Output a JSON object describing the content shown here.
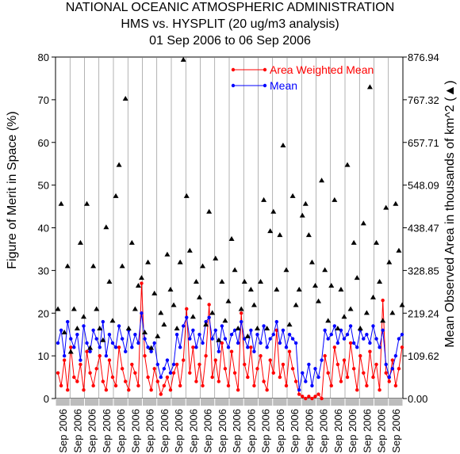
{
  "header": {
    "title_line1": "NATIONAL OCEANIC ATMOSPHERIC ADMINISTRATION",
    "title_line2": "HMS vs. HYSPLIT (20 ug/m3 analysis)",
    "title_line3": "01 Sep 2006 to 06 Sep 2006"
  },
  "colors": {
    "area_weighted_mean": "#ff0000",
    "mean": "#0000ff",
    "observed_area": "#000000",
    "date_band": "#bdbdbd"
  },
  "chart_data": {
    "type": "line",
    "ylabel_left": "Figure of Merit in Space (%)",
    "ylabel_right": "Mean Observed Area in thousands of km^2 (▲)",
    "ylim_left": [
      0,
      80
    ],
    "ylim_right": [
      0,
      876.94
    ],
    "yticks_left": [
      "0",
      "10",
      "20",
      "30",
      "40",
      "50",
      "60",
      "70",
      "80"
    ],
    "yticks_right": [
      "0.00",
      "109.62",
      "219.24",
      "328.85",
      "438.47",
      "548.09",
      "657.71",
      "767.32",
      "876.94"
    ],
    "xtick_label": "Sep 2006",
    "xtick_count": 24,
    "xlim": [
      0,
      432
    ],
    "legend": {
      "position": "top-right",
      "entries": [
        "Area Weighted Mean",
        "Mean"
      ]
    },
    "series": [
      {
        "name": "Area Weighted Mean",
        "color": "#ff0000",
        "marker": "circle",
        "x": [
          3,
          7,
          11,
          15,
          19,
          23,
          27,
          31,
          35,
          39,
          43,
          47,
          51,
          55,
          59,
          63,
          67,
          71,
          75,
          79,
          83,
          87,
          91,
          95,
          99,
          103,
          107,
          111,
          115,
          119,
          123,
          127,
          131,
          135,
          139,
          143,
          147,
          151,
          155,
          159,
          163,
          167,
          171,
          175,
          179,
          183,
          187,
          191,
          195,
          199,
          203,
          207,
          211,
          215,
          219,
          223,
          227,
          231,
          235,
          239,
          243,
          247,
          251,
          255,
          259,
          263,
          267,
          271,
          275,
          279,
          283,
          287,
          291,
          295,
          299,
          303,
          307,
          311,
          315,
          319,
          323,
          327,
          331,
          335,
          339,
          343,
          347,
          351,
          355,
          359,
          363,
          367,
          371,
          375,
          379,
          383,
          387,
          391,
          395,
          399,
          403,
          407,
          411,
          415,
          419,
          423,
          427,
          431
        ],
        "values": [
          6,
          3,
          9,
          2,
          12,
          5,
          4,
          8,
          2,
          11,
          6,
          3,
          7,
          10,
          4,
          2,
          9,
          5,
          3,
          12,
          7,
          4,
          2,
          8,
          6,
          3,
          27,
          10,
          5,
          2,
          7,
          4,
          1,
          3,
          5,
          2,
          6,
          8,
          3,
          9,
          21,
          6,
          12,
          4,
          8,
          3,
          10,
          22,
          5,
          9,
          4,
          13,
          7,
          3,
          11,
          6,
          2,
          20,
          8,
          5,
          12,
          3,
          7,
          10,
          4,
          2,
          9,
          6,
          16,
          5,
          8,
          3,
          11,
          7,
          4,
          1,
          0.5,
          0,
          0.5,
          0,
          0.5,
          1,
          0,
          10,
          6,
          3,
          12,
          8,
          4,
          9,
          5,
          13,
          7,
          2,
          10,
          6,
          3,
          11,
          5,
          8,
          2,
          23,
          6,
          4,
          9,
          3,
          7,
          12
        ]
      },
      {
        "name": "Mean",
        "color": "#0000ff",
        "marker": "circle",
        "x": [
          3,
          7,
          11,
          15,
          19,
          23,
          27,
          31,
          35,
          39,
          43,
          47,
          51,
          55,
          59,
          63,
          67,
          71,
          75,
          79,
          83,
          87,
          91,
          95,
          99,
          103,
          107,
          111,
          115,
          119,
          123,
          127,
          131,
          135,
          139,
          143,
          147,
          151,
          155,
          159,
          163,
          167,
          171,
          175,
          179,
          183,
          187,
          191,
          195,
          199,
          203,
          207,
          211,
          215,
          219,
          223,
          227,
          231,
          235,
          239,
          243,
          247,
          251,
          255,
          259,
          263,
          267,
          271,
          275,
          279,
          283,
          287,
          291,
          295,
          299,
          303,
          307,
          311,
          315,
          319,
          323,
          327,
          331,
          335,
          339,
          343,
          347,
          351,
          355,
          359,
          363,
          367,
          371,
          375,
          379,
          383,
          387,
          391,
          395,
          399,
          403,
          407,
          411,
          415,
          419,
          423,
          427,
          431
        ],
        "values": [
          13,
          16,
          10,
          18,
          14,
          12,
          15,
          9,
          17,
          13,
          11,
          16,
          14,
          12,
          18,
          10,
          15,
          13,
          12,
          17,
          14,
          11,
          16,
          12,
          15,
          13,
          20,
          14,
          12,
          11,
          13,
          8,
          5,
          7,
          9,
          6,
          8,
          15,
          12,
          17,
          19,
          14,
          16,
          12,
          15,
          13,
          18,
          19,
          14,
          16,
          11,
          17,
          14,
          12,
          15,
          16,
          13,
          18,
          14,
          12,
          16,
          11,
          15,
          13,
          17,
          12,
          14,
          15,
          18,
          13,
          16,
          12,
          15,
          14,
          13,
          2,
          6,
          4,
          8,
          3,
          7,
          5,
          9,
          16,
          14,
          15,
          17,
          13,
          16,
          14,
          15,
          17,
          13,
          12,
          16,
          14,
          15,
          13,
          17,
          14,
          12,
          16,
          8,
          5,
          7,
          10,
          14,
          15
        ]
      },
      {
        "name": "",
        "axis": "right",
        "color": "#000000",
        "marker": "triangle",
        "x": [
          3,
          7,
          11,
          15,
          19,
          23,
          27,
          31,
          35,
          39,
          43,
          47,
          51,
          55,
          59,
          63,
          67,
          71,
          75,
          79,
          83,
          87,
          91,
          95,
          99,
          103,
          107,
          111,
          115,
          119,
          123,
          127,
          131,
          135,
          139,
          143,
          147,
          151,
          155,
          159,
          163,
          167,
          171,
          175,
          179,
          183,
          187,
          191,
          195,
          199,
          203,
          207,
          211,
          215,
          219,
          223,
          227,
          231,
          235,
          239,
          243,
          247,
          251,
          255,
          259,
          263,
          267,
          271,
          275,
          279,
          283,
          287,
          291,
          295,
          299,
          303,
          307,
          311,
          315,
          319,
          323,
          327,
          331,
          335,
          339,
          343,
          347,
          351,
          355,
          359,
          363,
          367,
          371,
          375,
          379,
          383,
          387,
          391,
          395,
          399,
          403,
          407,
          411,
          415,
          419,
          423,
          427,
          431
        ],
        "values": [
          230,
          500,
          170,
          340,
          120,
          230,
          180,
          400,
          210,
          500,
          130,
          340,
          230,
          180,
          150,
          440,
          300,
          200,
          520,
          600,
          340,
          770,
          180,
          400,
          230,
          290,
          310,
          170,
          350,
          130,
          270,
          160,
          220,
          190,
          370,
          280,
          240,
          180,
          350,
          870,
          520,
          380,
          210,
          300,
          260,
          340,
          190,
          480,
          220,
          360,
          150,
          300,
          200,
          250,
          410,
          330,
          180,
          230,
          300,
          160,
          280,
          240,
          180,
          300,
          510,
          180,
          430,
          480,
          280,
          420,
          650,
          330,
          190,
          520,
          240,
          280,
          470,
          500,
          420,
          350,
          290,
          250,
          560,
          330,
          200,
          290,
          510,
          180,
          280,
          210,
          600,
          230,
          400,
          310,
          180,
          450,
          220,
          800,
          260,
          400,
          300,
          200,
          490,
          350,
          220,
          500,
          380,
          240
        ]
      }
    ]
  }
}
